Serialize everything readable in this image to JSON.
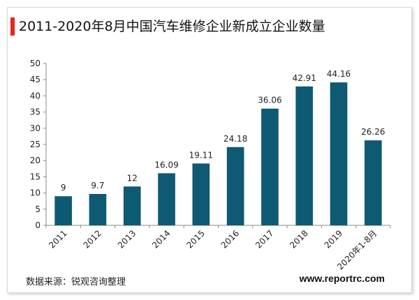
{
  "header": {
    "title": "2011-2020年8月中国汽车维修企业新成立企业数量"
  },
  "footer": {
    "source": "数据来源：锐观咨询整理",
    "website": "www.reportrc.com"
  },
  "colors": {
    "bar": "#0e5a72",
    "accent": "#e8261c",
    "axis": "#8a8a8a"
  },
  "chart_data": {
    "type": "bar",
    "categories": [
      "2011",
      "2012",
      "2013",
      "2014",
      "2015",
      "2016",
      "2017",
      "2018",
      "2019",
      "2020年1-8月"
    ],
    "values": [
      9,
      9.7,
      12,
      16.09,
      19.11,
      24.18,
      36.06,
      42.91,
      44.16,
      26.26
    ],
    "value_labels": [
      "9",
      "9.7",
      "12",
      "16.09",
      "19.11",
      "24.18",
      "36.06",
      "42.91",
      "44.16",
      "26.26"
    ],
    "ylim": [
      0,
      50
    ],
    "yticks": [
      "0",
      "5",
      "10",
      "15",
      "20",
      "25",
      "30",
      "35",
      "40",
      "45",
      "50"
    ],
    "grid": false,
    "legend": "none"
  }
}
